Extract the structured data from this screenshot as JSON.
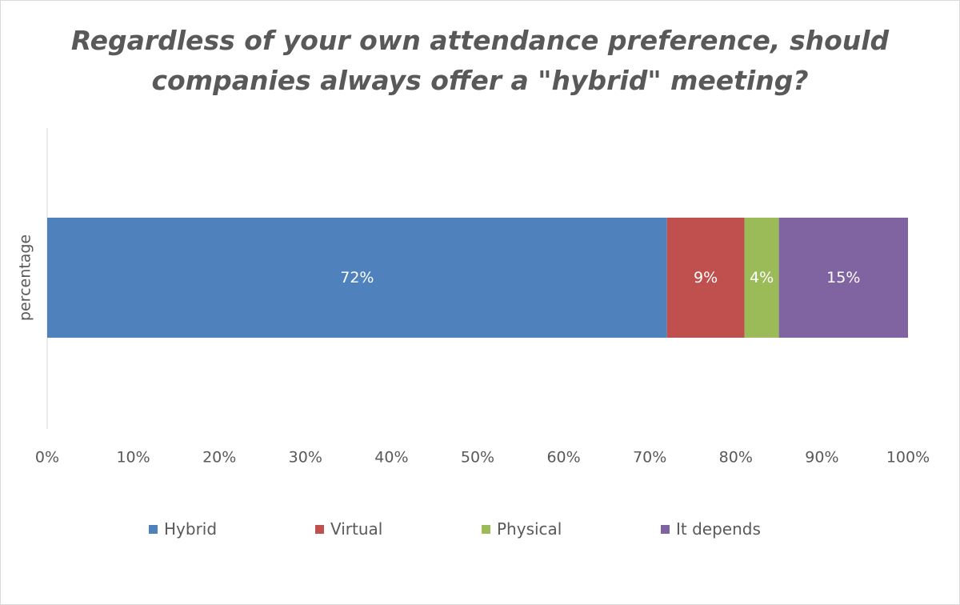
{
  "chart_data": {
    "type": "bar",
    "orientation": "horizontal",
    "stacked": "percent",
    "title_lines": [
      "Regardless of your own attendance preference, should",
      "companies always offer a \"hybrid\" meeting?"
    ],
    "categories": [
      "percentage"
    ],
    "ylabel": "percentage",
    "xlim": [
      0,
      100
    ],
    "xticks": [
      0,
      10,
      20,
      30,
      40,
      50,
      60,
      70,
      80,
      90,
      100
    ],
    "xtick_labels": [
      "0%",
      "10%",
      "20%",
      "30%",
      "40%",
      "50%",
      "60%",
      "70%",
      "80%",
      "90%",
      "100%"
    ],
    "series": [
      {
        "name": "Hybrid",
        "values": [
          72
        ],
        "label": "72%",
        "color": "#4F81BD"
      },
      {
        "name": "Virtual",
        "values": [
          9
        ],
        "label": "9%",
        "color": "#C0504D"
      },
      {
        "name": "Physical",
        "values": [
          4
        ],
        "label": "4%",
        "color": "#9BBB59"
      },
      {
        "name": "It depends",
        "values": [
          15
        ],
        "label": "15%",
        "color": "#8064A2"
      }
    ],
    "legend_position": "bottom",
    "grid": false
  }
}
